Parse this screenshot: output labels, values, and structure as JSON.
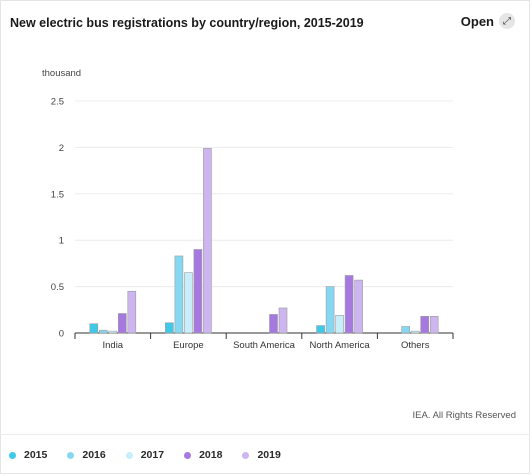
{
  "header": {
    "title": "New electric bus registrations by country/region, 2015-2019",
    "open_label": "Open",
    "open_icon": "expand-icon"
  },
  "footer": {
    "credit": "IEA. All Rights Reserved"
  },
  "chart_data": {
    "type": "bar",
    "title": "New electric bus registrations by country/region, 2015-2019",
    "unit_label": "thousand",
    "xlabel": "",
    "ylabel": "",
    "ylim": [
      0,
      2.5
    ],
    "yticks": [
      0,
      0.5,
      1,
      1.5,
      2,
      2.5
    ],
    "ytick_labels": [
      "0",
      "0.5",
      "1",
      "1.5",
      "2",
      "2.5"
    ],
    "grid": true,
    "legend_position": "bottom",
    "categories": [
      "India",
      "Europe",
      "South America",
      "North America",
      "Others"
    ],
    "series": [
      {
        "name": "2015",
        "color": "#3ec9e8",
        "values": [
          0.1,
          0.11,
          0,
          0.08,
          0
        ]
      },
      {
        "name": "2016",
        "color": "#86d8f2",
        "values": [
          0.03,
          0.83,
          0,
          0.5,
          0.07
        ]
      },
      {
        "name": "2017",
        "color": "#c8eef9",
        "values": [
          0.02,
          0.65,
          0,
          0.19,
          0.02
        ]
      },
      {
        "name": "2018",
        "color": "#a679e0",
        "values": [
          0.21,
          0.9,
          0.2,
          0.62,
          0.18
        ]
      },
      {
        "name": "2019",
        "color": "#cdb5ef",
        "values": [
          0.45,
          1.99,
          0.27,
          0.57,
          0.18
        ]
      }
    ]
  }
}
